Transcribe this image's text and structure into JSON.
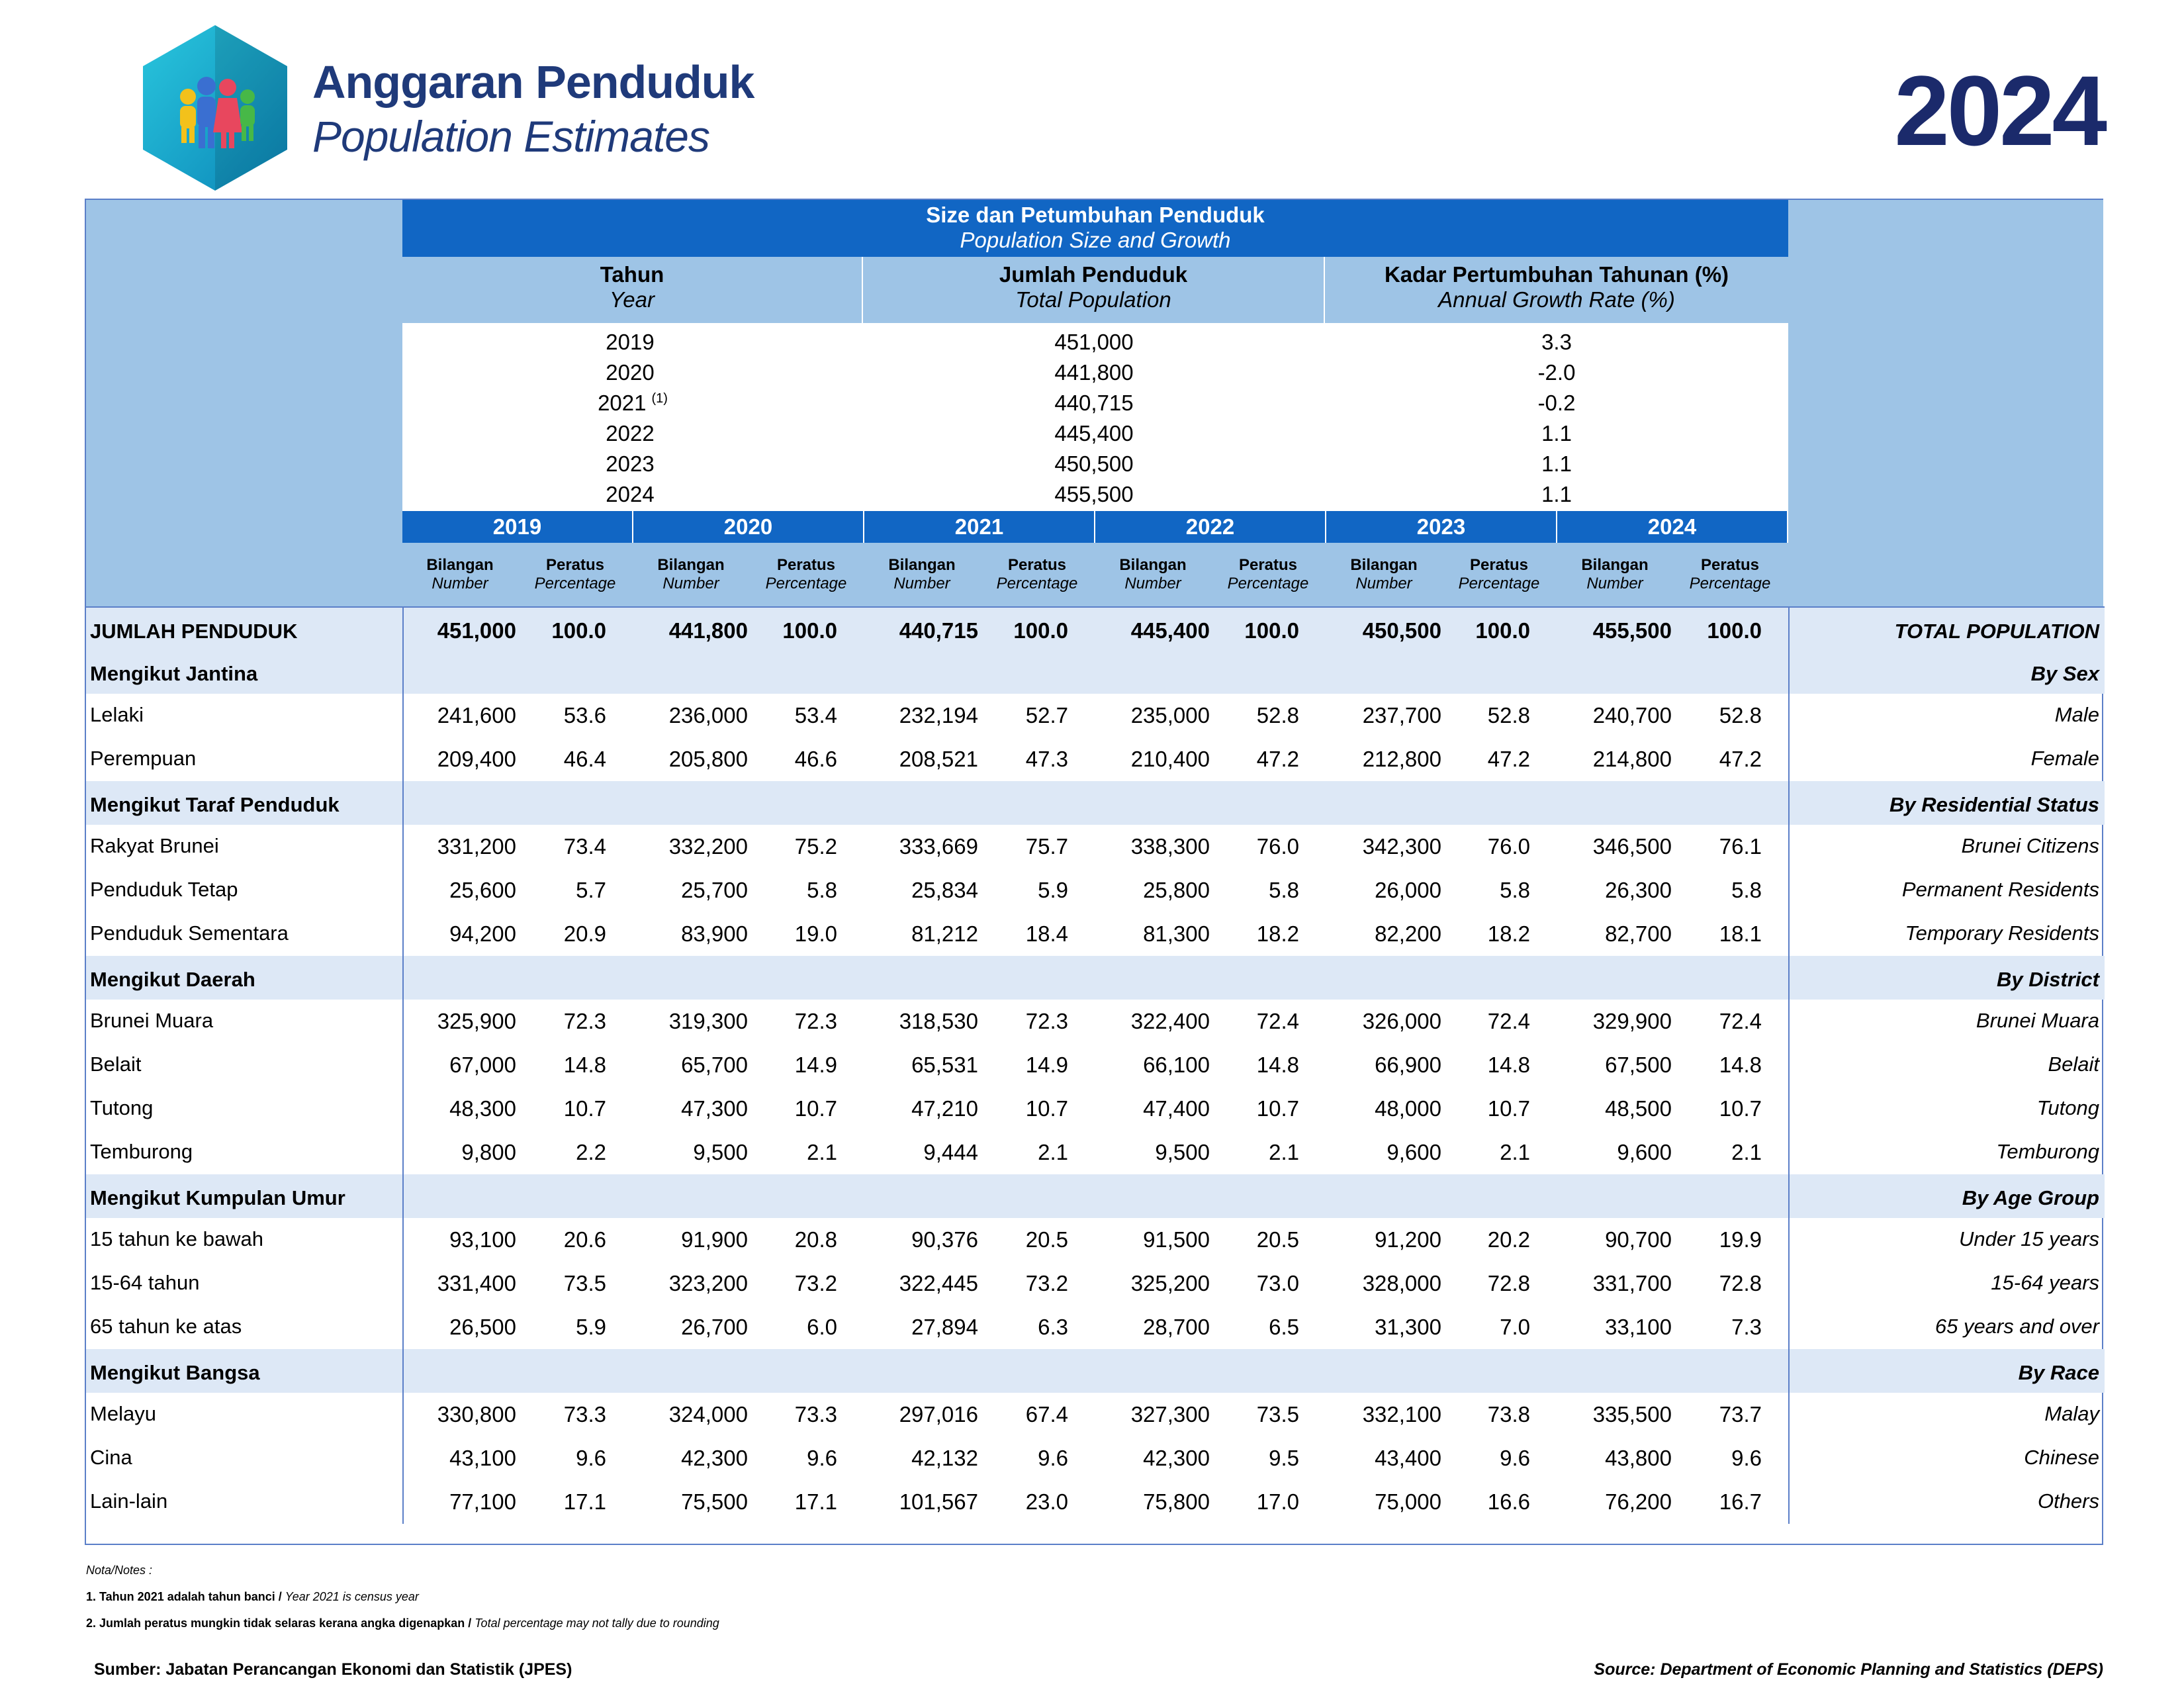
{
  "header": {
    "title_ms": "Anggaran Penduduk",
    "title_en": "Population Estimates",
    "year": "2024"
  },
  "summary": {
    "title_ms": "Size dan Petumbuhan Penduduk",
    "title_en": "Population Size and Growth",
    "col_headers": [
      {
        "ms": "Tahun",
        "en": "Year"
      },
      {
        "ms": "Jumlah Penduduk",
        "en": "Total Population"
      },
      {
        "ms": "Kadar Pertumbuhan Tahunan (%)",
        "en": "Annual Growth Rate (%)"
      }
    ],
    "rows": [
      {
        "year": "2019",
        "note": "",
        "total": "451,000",
        "rate": "3.3"
      },
      {
        "year": "2020",
        "note": "",
        "total": "441,800",
        "rate": "-2.0"
      },
      {
        "year": "2021",
        "note": "(1)",
        "total": "440,715",
        "rate": "-0.2"
      },
      {
        "year": "2022",
        "note": "",
        "total": "445,400",
        "rate": "1.1"
      },
      {
        "year": "2023",
        "note": "",
        "total": "450,500",
        "rate": "1.1"
      },
      {
        "year": "2024",
        "note": "",
        "total": "455,500",
        "rate": "1.1"
      }
    ]
  },
  "table": {
    "years": [
      "2019",
      "2020",
      "2021",
      "2022",
      "2023",
      "2024"
    ],
    "sub_number_ms": "Bilangan",
    "sub_number_en": "Number",
    "sub_pct_ms": "Peratus",
    "sub_pct_en": "Percentage",
    "rows": [
      {
        "type": "total",
        "ms": "JUMLAH  PENDUDUK",
        "en": "TOTAL POPULATION",
        "values": [
          "451,000",
          "100.0",
          "441,800",
          "100.0",
          "440,715",
          "100.0",
          "445,400",
          "100.0",
          "450,500",
          "100.0",
          "455,500",
          "100.0"
        ]
      },
      {
        "type": "section",
        "ms": "Mengikut Jantina",
        "en": "By Sex"
      },
      {
        "type": "data",
        "ms": "Lelaki",
        "en": "Male",
        "values": [
          "241,600",
          "53.6",
          "236,000",
          "53.4",
          "232,194",
          "52.7",
          "235,000",
          "52.8",
          "237,700",
          "52.8",
          "240,700",
          "52.8"
        ]
      },
      {
        "type": "data",
        "ms": "Perempuan",
        "en": "Female",
        "values": [
          "209,400",
          "46.4",
          "205,800",
          "46.6",
          "208,521",
          "47.3",
          "210,400",
          "47.2",
          "212,800",
          "47.2",
          "214,800",
          "47.2"
        ]
      },
      {
        "type": "section",
        "ms": "Mengikut Taraf Penduduk",
        "en": "By Residential Status"
      },
      {
        "type": "data",
        "ms": "Rakyat Brunei",
        "en": "Brunei Citizens",
        "values": [
          "331,200",
          "73.4",
          "332,200",
          "75.2",
          "333,669",
          "75.7",
          "338,300",
          "76.0",
          "342,300",
          "76.0",
          "346,500",
          "76.1"
        ]
      },
      {
        "type": "data",
        "ms": "Penduduk Tetap",
        "en": "Permanent Residents",
        "values": [
          "25,600",
          "5.7",
          "25,700",
          "5.8",
          "25,834",
          "5.9",
          "25,800",
          "5.8",
          "26,000",
          "5.8",
          "26,300",
          "5.8"
        ]
      },
      {
        "type": "data",
        "ms": "Penduduk Sementara",
        "en": "Temporary Residents",
        "values": [
          "94,200",
          "20.9",
          "83,900",
          "19.0",
          "81,212",
          "18.4",
          "81,300",
          "18.2",
          "82,200",
          "18.2",
          "82,700",
          "18.1"
        ]
      },
      {
        "type": "section",
        "ms": "Mengikut Daerah",
        "en": "By District"
      },
      {
        "type": "data",
        "ms": "Brunei Muara",
        "en": "Brunei Muara",
        "values": [
          "325,900",
          "72.3",
          "319,300",
          "72.3",
          "318,530",
          "72.3",
          "322,400",
          "72.4",
          "326,000",
          "72.4",
          "329,900",
          "72.4"
        ]
      },
      {
        "type": "data",
        "ms": "Belait",
        "en": "Belait",
        "values": [
          "67,000",
          "14.8",
          "65,700",
          "14.9",
          "65,531",
          "14.9",
          "66,100",
          "14.8",
          "66,900",
          "14.8",
          "67,500",
          "14.8"
        ]
      },
      {
        "type": "data",
        "ms": "Tutong",
        "en": "Tutong",
        "values": [
          "48,300",
          "10.7",
          "47,300",
          "10.7",
          "47,210",
          "10.7",
          "47,400",
          "10.7",
          "48,000",
          "10.7",
          "48,500",
          "10.7"
        ]
      },
      {
        "type": "data",
        "ms": "Temburong",
        "en": "Temburong",
        "values": [
          "9,800",
          "2.2",
          "9,500",
          "2.1",
          "9,444",
          "2.1",
          "9,500",
          "2.1",
          "9,600",
          "2.1",
          "9,600",
          "2.1"
        ]
      },
      {
        "type": "section",
        "ms": "Mengikut Kumpulan Umur",
        "en": "By Age Group"
      },
      {
        "type": "data",
        "ms": "15 tahun ke bawah",
        "en": "Under 15 years",
        "values": [
          "93,100",
          "20.6",
          "91,900",
          "20.8",
          "90,376",
          "20.5",
          "91,500",
          "20.5",
          "91,200",
          "20.2",
          "90,700",
          "19.9"
        ]
      },
      {
        "type": "data",
        "ms": "15-64 tahun",
        "en": "15-64 years",
        "values": [
          "331,400",
          "73.5",
          "323,200",
          "73.2",
          "322,445",
          "73.2",
          "325,200",
          "73.0",
          "328,000",
          "72.8",
          "331,700",
          "72.8"
        ]
      },
      {
        "type": "data",
        "ms": "65 tahun ke atas",
        "en": "65  years and over",
        "values": [
          "26,500",
          "5.9",
          "26,700",
          "6.0",
          "27,894",
          "6.3",
          "28,700",
          "6.5",
          "31,300",
          "7.0",
          "33,100",
          "7.3"
        ]
      },
      {
        "type": "section",
        "ms": "Mengikut Bangsa",
        "en": "By Race"
      },
      {
        "type": "data",
        "ms": "Melayu",
        "en": "Malay",
        "values": [
          "330,800",
          "73.3",
          "324,000",
          "73.3",
          "297,016",
          "67.4",
          "327,300",
          "73.5",
          "332,100",
          "73.8",
          "335,500",
          "73.7"
        ]
      },
      {
        "type": "data",
        "ms": "Cina",
        "en": "Chinese",
        "values": [
          "43,100",
          "9.6",
          "42,300",
          "9.6",
          "42,132",
          "9.6",
          "42,300",
          "9.5",
          "43,400",
          "9.6",
          "43,800",
          "9.6"
        ]
      },
      {
        "type": "data",
        "ms": "Lain-lain",
        "en": "Others",
        "values": [
          "77,100",
          "17.1",
          "75,500",
          "17.1",
          "101,567",
          "23.0",
          "75,800",
          "17.0",
          "75,000",
          "16.6",
          "76,200",
          "16.7"
        ]
      }
    ]
  },
  "notes": {
    "heading": "Nota/Notes :",
    "items": [
      {
        "ms": "1. Tahun 2021 adalah tahun banci / ",
        "en": "Year 2021 is census year"
      },
      {
        "ms": "2. Jumlah peratus mungkin tidak selaras kerana angka digenapkan / ",
        "en": "Total percentage may not tally due to rounding"
      }
    ]
  },
  "source": {
    "ms": "Sumber: Jabatan Perancangan Ekonomi dan Statistik (JPES)",
    "en": "Source: Department of Economic Planning and Statistics (DEPS)"
  },
  "colors": {
    "dark_blue": "#1166c4",
    "light_blue": "#9ec4e6",
    "pale_blue": "#dde8f6",
    "title_navy": "#1f3a7a"
  },
  "icons": {
    "logo": "family-hexagon-icon"
  }
}
